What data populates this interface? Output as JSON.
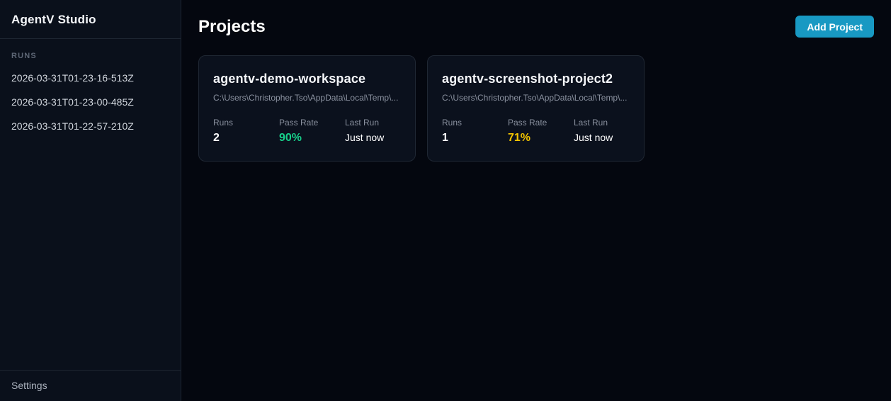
{
  "app": {
    "title": "AgentV Studio"
  },
  "colors": {
    "background": "#04070f",
    "sidebar_background": "#0a101b",
    "card_background": "#0b111d",
    "border": "#1e2632",
    "accent_button": "#1899c3",
    "pass_rate_good": "#17d18b",
    "pass_rate_warn": "#f2c400",
    "muted_text": "#8a919f"
  },
  "sidebar": {
    "runs_header": "RUNS",
    "runs": [
      {
        "label": "2026-03-31T01-23-16-513Z"
      },
      {
        "label": "2026-03-31T01-23-00-485Z"
      },
      {
        "label": "2026-03-31T01-22-57-210Z"
      }
    ],
    "settings_label": "Settings"
  },
  "main": {
    "title": "Projects",
    "add_project_label": "Add Project",
    "stat_labels": {
      "runs": "Runs",
      "pass_rate": "Pass Rate",
      "last_run": "Last Run"
    },
    "projects": [
      {
        "name": "agentv-demo-workspace",
        "path": "C:\\Users\\Christopher.Tso\\AppData\\Local\\Temp\\...",
        "runs": "2",
        "pass_rate": "90%",
        "pass_rate_color": "#17d18b",
        "last_run": "Just now"
      },
      {
        "name": "agentv-screenshot-project2",
        "path": "C:\\Users\\Christopher.Tso\\AppData\\Local\\Temp\\...",
        "runs": "1",
        "pass_rate": "71%",
        "pass_rate_color": "#f2c400",
        "last_run": "Just now"
      }
    ]
  }
}
